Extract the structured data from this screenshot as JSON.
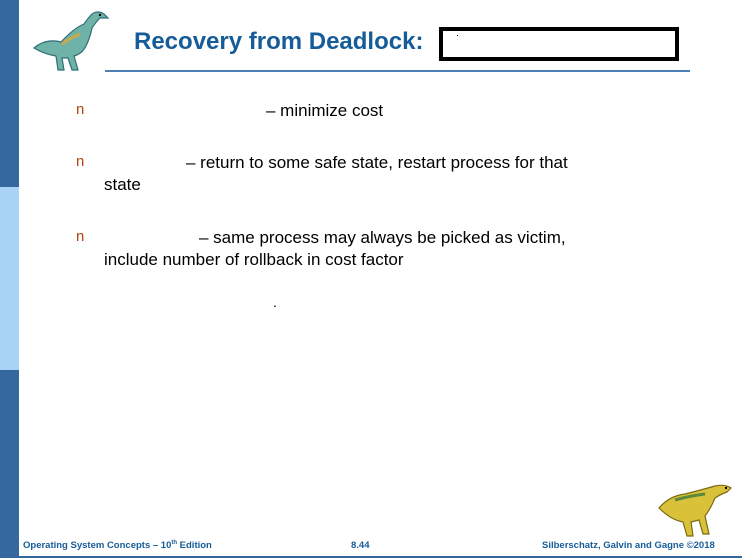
{
  "slide": {
    "title": "Recovery from Deadlock:",
    "bullet_marker": "n",
    "bullets": [
      {
        "text": "– minimize cost",
        "continuation": ""
      },
      {
        "text": "– return to some safe state, restart process for that",
        "continuation": "state"
      },
      {
        "text": "–  same process may always be picked as victim,",
        "continuation": "include number of rollback in cost factor"
      }
    ],
    "period": "."
  },
  "footer": {
    "left_prefix": "Operating System Concepts – 10",
    "left_sup": "th",
    "left_suffix": " Edition",
    "page": "8.44",
    "right": "Silberschatz, Galvin and Gagne ©2018"
  },
  "colors": {
    "title": "#165c99",
    "sidebar_dark": "#34689f",
    "sidebar_light": "#a9d3f4",
    "bullet_marker": "#b4430f"
  },
  "icons": [
    "dinosaur-logo-top",
    "dinosaur-logo-bottom"
  ]
}
